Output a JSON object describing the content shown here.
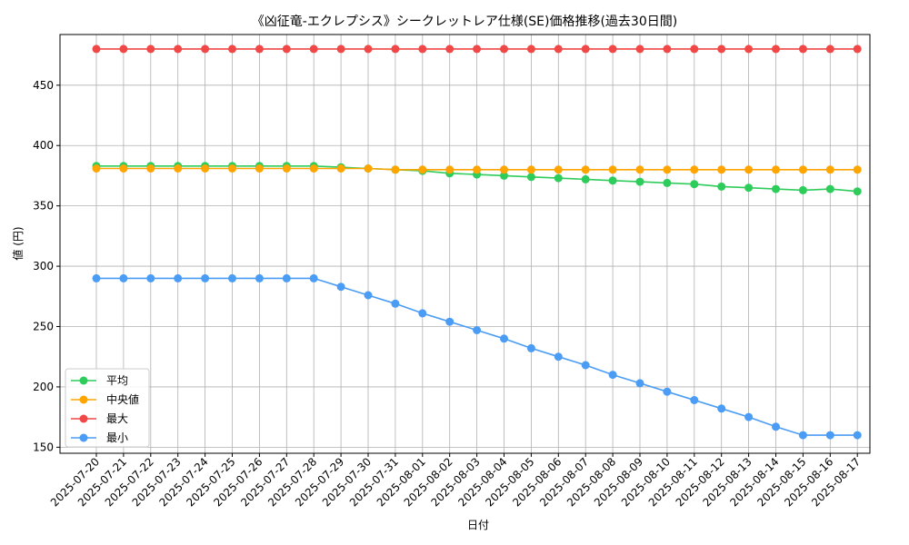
{
  "chart_data": {
    "type": "line",
    "title": "《凶征竜-エクレプシス》シークレットレア仕様(SE)価格推移(過去30日間)",
    "xlabel": "日付",
    "ylabel": "値 (円)",
    "ylim": [
      145,
      492
    ],
    "yticks": [
      150,
      200,
      250,
      300,
      350,
      400,
      450
    ],
    "grid": true,
    "legend_position": "lower-left",
    "categories": [
      "2025-07-20",
      "2025-07-21",
      "2025-07-22",
      "2025-07-23",
      "2025-07-24",
      "2025-07-25",
      "2025-07-26",
      "2025-07-27",
      "2025-07-28",
      "2025-07-29",
      "2025-07-30",
      "2025-07-31",
      "2025-08-01",
      "2025-08-02",
      "2025-08-03",
      "2025-08-04",
      "2025-08-05",
      "2025-08-06",
      "2025-08-07",
      "2025-08-08",
      "2025-08-09",
      "2025-08-10",
      "2025-08-11",
      "2025-08-12",
      "2025-08-13",
      "2025-08-14",
      "2025-08-15",
      "2025-08-16",
      "2025-08-17"
    ],
    "series": [
      {
        "name": "平均",
        "color": "#2ecc5a",
        "values": [
          383,
          383,
          383,
          383,
          383,
          383,
          383,
          383,
          383,
          382,
          381,
          380,
          379,
          377,
          376,
          375,
          374,
          373,
          372,
          371,
          370,
          369,
          368,
          366,
          365,
          364,
          363,
          364,
          362
        ]
      },
      {
        "name": "中央値",
        "color": "#ffa500",
        "values": [
          381,
          381,
          381,
          381,
          381,
          381,
          381,
          381,
          381,
          381,
          381,
          380,
          380,
          380,
          380,
          380,
          380,
          380,
          380,
          380,
          380,
          380,
          380,
          380,
          380,
          380,
          380,
          380,
          380
        ]
      },
      {
        "name": "最大",
        "color": "#f04747",
        "values": [
          480,
          480,
          480,
          480,
          480,
          480,
          480,
          480,
          480,
          480,
          480,
          480,
          480,
          480,
          480,
          480,
          480,
          480,
          480,
          480,
          480,
          480,
          480,
          480,
          480,
          480,
          480,
          480,
          480
        ]
      },
      {
        "name": "最小",
        "color": "#4a9cf5",
        "values": [
          290,
          290,
          290,
          290,
          290,
          290,
          290,
          290,
          290,
          283,
          276,
          269,
          261,
          254,
          247,
          240,
          232,
          225,
          218,
          210,
          203,
          196,
          189,
          182,
          175,
          167,
          160,
          160,
          160
        ]
      }
    ]
  }
}
